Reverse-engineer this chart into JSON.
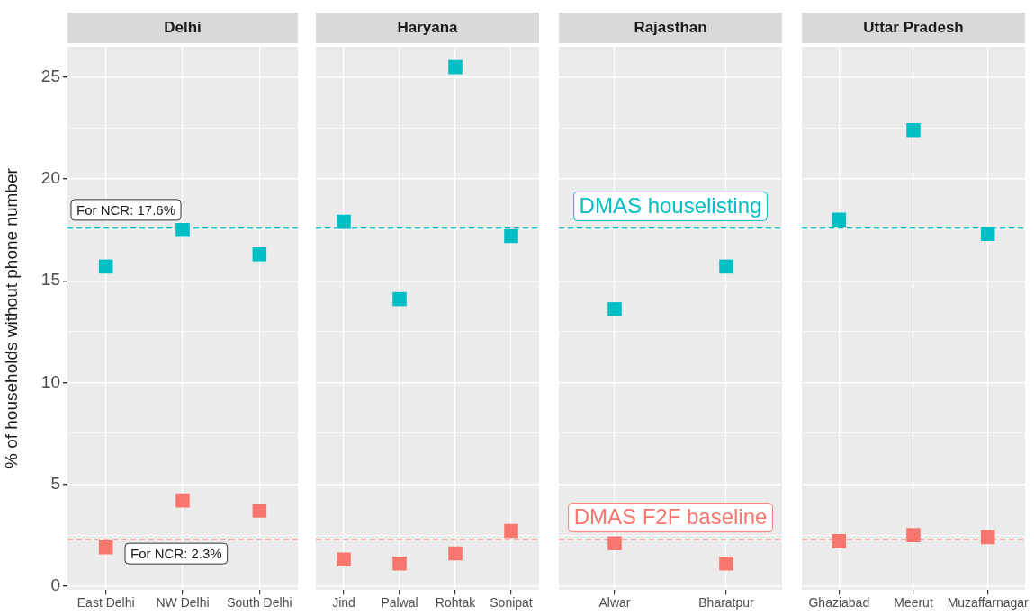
{
  "chart_data": [
    {
      "type": "scatter",
      "title": "Delhi",
      "ylabel": "% of households without phone number",
      "categories": [
        "East Delhi",
        "NW Delhi",
        "South Delhi"
      ],
      "series": [
        {
          "color": "#00bfc4",
          "values": [
            15.7,
            17.5,
            16.3
          ]
        },
        {
          "color": "#f8766d",
          "values": [
            1.9,
            4.2,
            3.7
          ]
        }
      ],
      "ylim": [
        -0.2,
        26.5
      ],
      "yticks": [
        0,
        {
          "value": 2.5,
          "label": null
        },
        5,
        {
          "value": 7.5,
          "label": null
        },
        10,
        {
          "value": 12.5,
          "label": null
        },
        15,
        {
          "value": 17.5,
          "label": null
        },
        20,
        {
          "value": 22.5,
          "label": null
        },
        25
      ],
      "ref_lines": [
        {
          "axis": "y",
          "value": 17.6,
          "label": "For NCR: 17.6%",
          "color": "#00bfc4",
          "line_style": "dashed"
        },
        {
          "axis": "y",
          "value": 2.3,
          "label": "For NCR: 2.3%",
          "color": "#f8766d",
          "line_style": "dashed"
        }
      ],
      "grid": true,
      "marker": "square"
    },
    {
      "type": "scatter",
      "title": "Haryana",
      "categories": [
        "Jind",
        "Palwal",
        "Rohtak",
        "Sonipat"
      ],
      "series": [
        {
          "color": "#00bfc4",
          "values": [
            17.9,
            14.1,
            25.5,
            17.2
          ]
        },
        {
          "color": "#f8766d",
          "values": [
            1.3,
            1.1,
            1.6,
            2.7
          ]
        }
      ],
      "ylim": [
        -0.2,
        26.5
      ],
      "yticks": [
        0,
        {
          "value": 2.5,
          "label": null
        },
        5,
        {
          "value": 7.5,
          "label": null
        },
        10,
        {
          "value": 12.5,
          "label": null
        },
        15,
        {
          "value": 17.5,
          "label": null
        },
        20,
        {
          "value": 22.5,
          "label": null
        },
        25
      ],
      "ref_lines": [
        {
          "axis": "y",
          "value": 17.6,
          "color": "#00bfc4",
          "line_style": "dashed"
        },
        {
          "axis": "y",
          "value": 2.3,
          "color": "#f8766d",
          "line_style": "dashed"
        }
      ],
      "grid": true,
      "marker": "square",
      "tick_labels": "x"
    },
    {
      "type": "scatter",
      "title": "Rajasthan",
      "categories": [
        "Alwar",
        "Bharatpur"
      ],
      "series": [
        {
          "name": "DMAS houselisting",
          "color": "#00bfc4",
          "values": [
            13.6,
            15.7
          ]
        },
        {
          "name": "DMAS F2F baseline",
          "color": "#f8766d",
          "values": [
            2.1,
            1.1
          ]
        }
      ],
      "ylim": [
        -0.2,
        26.5
      ],
      "yticks": [
        0,
        {
          "value": 2.5,
          "label": null
        },
        5,
        {
          "value": 7.5,
          "label": null
        },
        10,
        {
          "value": 12.5,
          "label": null
        },
        15,
        {
          "value": 17.5,
          "label": null
        },
        20,
        {
          "value": 22.5,
          "label": null
        },
        25
      ],
      "ref_lines": [
        {
          "axis": "y",
          "value": 17.6,
          "color": "#00bfc4",
          "line_style": "dashed"
        },
        {
          "axis": "y",
          "value": 2.3,
          "color": "#f8766d",
          "line_style": "dashed"
        }
      ],
      "grid": true,
      "marker": "square",
      "tick_labels": "x"
    },
    {
      "type": "scatter",
      "title": "Uttar Pradesh",
      "categories": [
        "Ghaziabad",
        "Meerut",
        "Muzaffarnagar"
      ],
      "series": [
        {
          "color": "#00bfc4",
          "values": [
            18.0,
            22.4,
            17.3
          ]
        },
        {
          "color": "#f8766d",
          "values": [
            2.2,
            2.5,
            2.4
          ]
        }
      ],
      "ylim": [
        -0.2,
        26.5
      ],
      "yticks": [
        0,
        {
          "value": 2.5,
          "label": null
        },
        5,
        {
          "value": 7.5,
          "label": null
        },
        10,
        {
          "value": 12.5,
          "label": null
        },
        15,
        {
          "value": 17.5,
          "label": null
        },
        20,
        {
          "value": 22.5,
          "label": null
        },
        25
      ],
      "ref_lines": [
        {
          "axis": "y",
          "value": 17.6,
          "color": "#00bfc4",
          "line_style": "dashed"
        },
        {
          "axis": "y",
          "value": 2.3,
          "color": "#f8766d",
          "line_style": "dashed"
        }
      ],
      "grid": true,
      "marker": "square",
      "tick_labels": "x"
    }
  ]
}
